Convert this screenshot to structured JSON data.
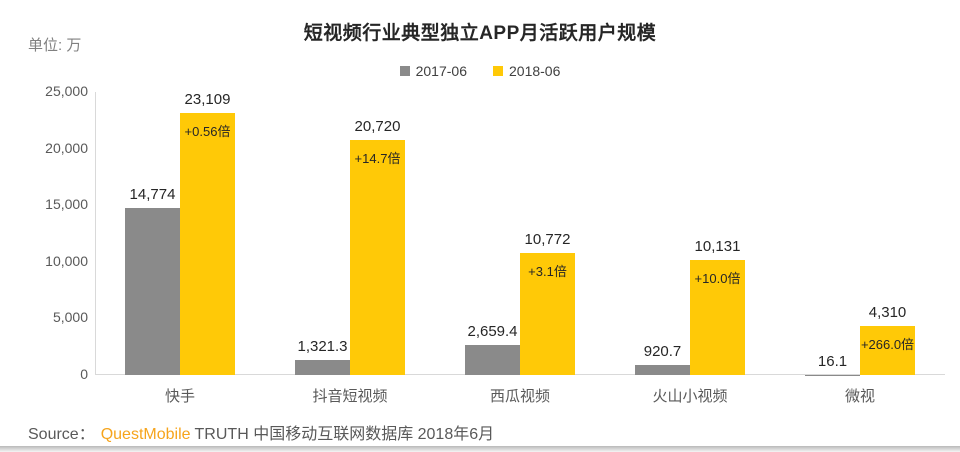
{
  "unit_label": "单位: 万",
  "title": "短视频行业典型独立APP月活跃用户规模",
  "legend": [
    {
      "label": "2017-06",
      "color": "#8a8a8a"
    },
    {
      "label": "2018-06",
      "color": "#ffc907"
    }
  ],
  "source": {
    "prefix": "Source：",
    "brand": "QuestMobile",
    "rest": "TRUTH 中国移动互联网数据库 2018年6月"
  },
  "chart_data": {
    "type": "bar",
    "title": "短视频行业典型独立APP月活跃用户规模",
    "ylabel": "单位: 万",
    "categories": [
      "快手",
      "抖音短视频",
      "西瓜视频",
      "火山小视频",
      "微视"
    ],
    "series": [
      {
        "name": "2017-06",
        "color": "#8a8a8a",
        "values": [
          14774,
          1321.3,
          2659.4,
          920.7,
          16.1
        ],
        "value_labels": [
          "14,774",
          "1,321.3",
          "2,659.4",
          "920.7",
          "16.1"
        ]
      },
      {
        "name": "2018-06",
        "color": "#ffc907",
        "values": [
          23109,
          20720,
          10772,
          10131,
          4310
        ],
        "value_labels": [
          "23,109",
          "20,720",
          "10,772",
          "10,131",
          "4,310"
        ],
        "growth_labels": [
          "+0.56倍",
          "+14.7倍",
          "+3.1倍",
          "+10.0倍",
          "+266.0倍"
        ]
      }
    ],
    "ylim": [
      0,
      25000
    ],
    "yticks": [
      0,
      5000,
      10000,
      15000,
      20000,
      25000
    ],
    "ytick_labels": [
      "0",
      "5,000",
      "10,000",
      "15,000",
      "20,000",
      "25,000"
    ],
    "grid": false,
    "legend_position": "top"
  }
}
